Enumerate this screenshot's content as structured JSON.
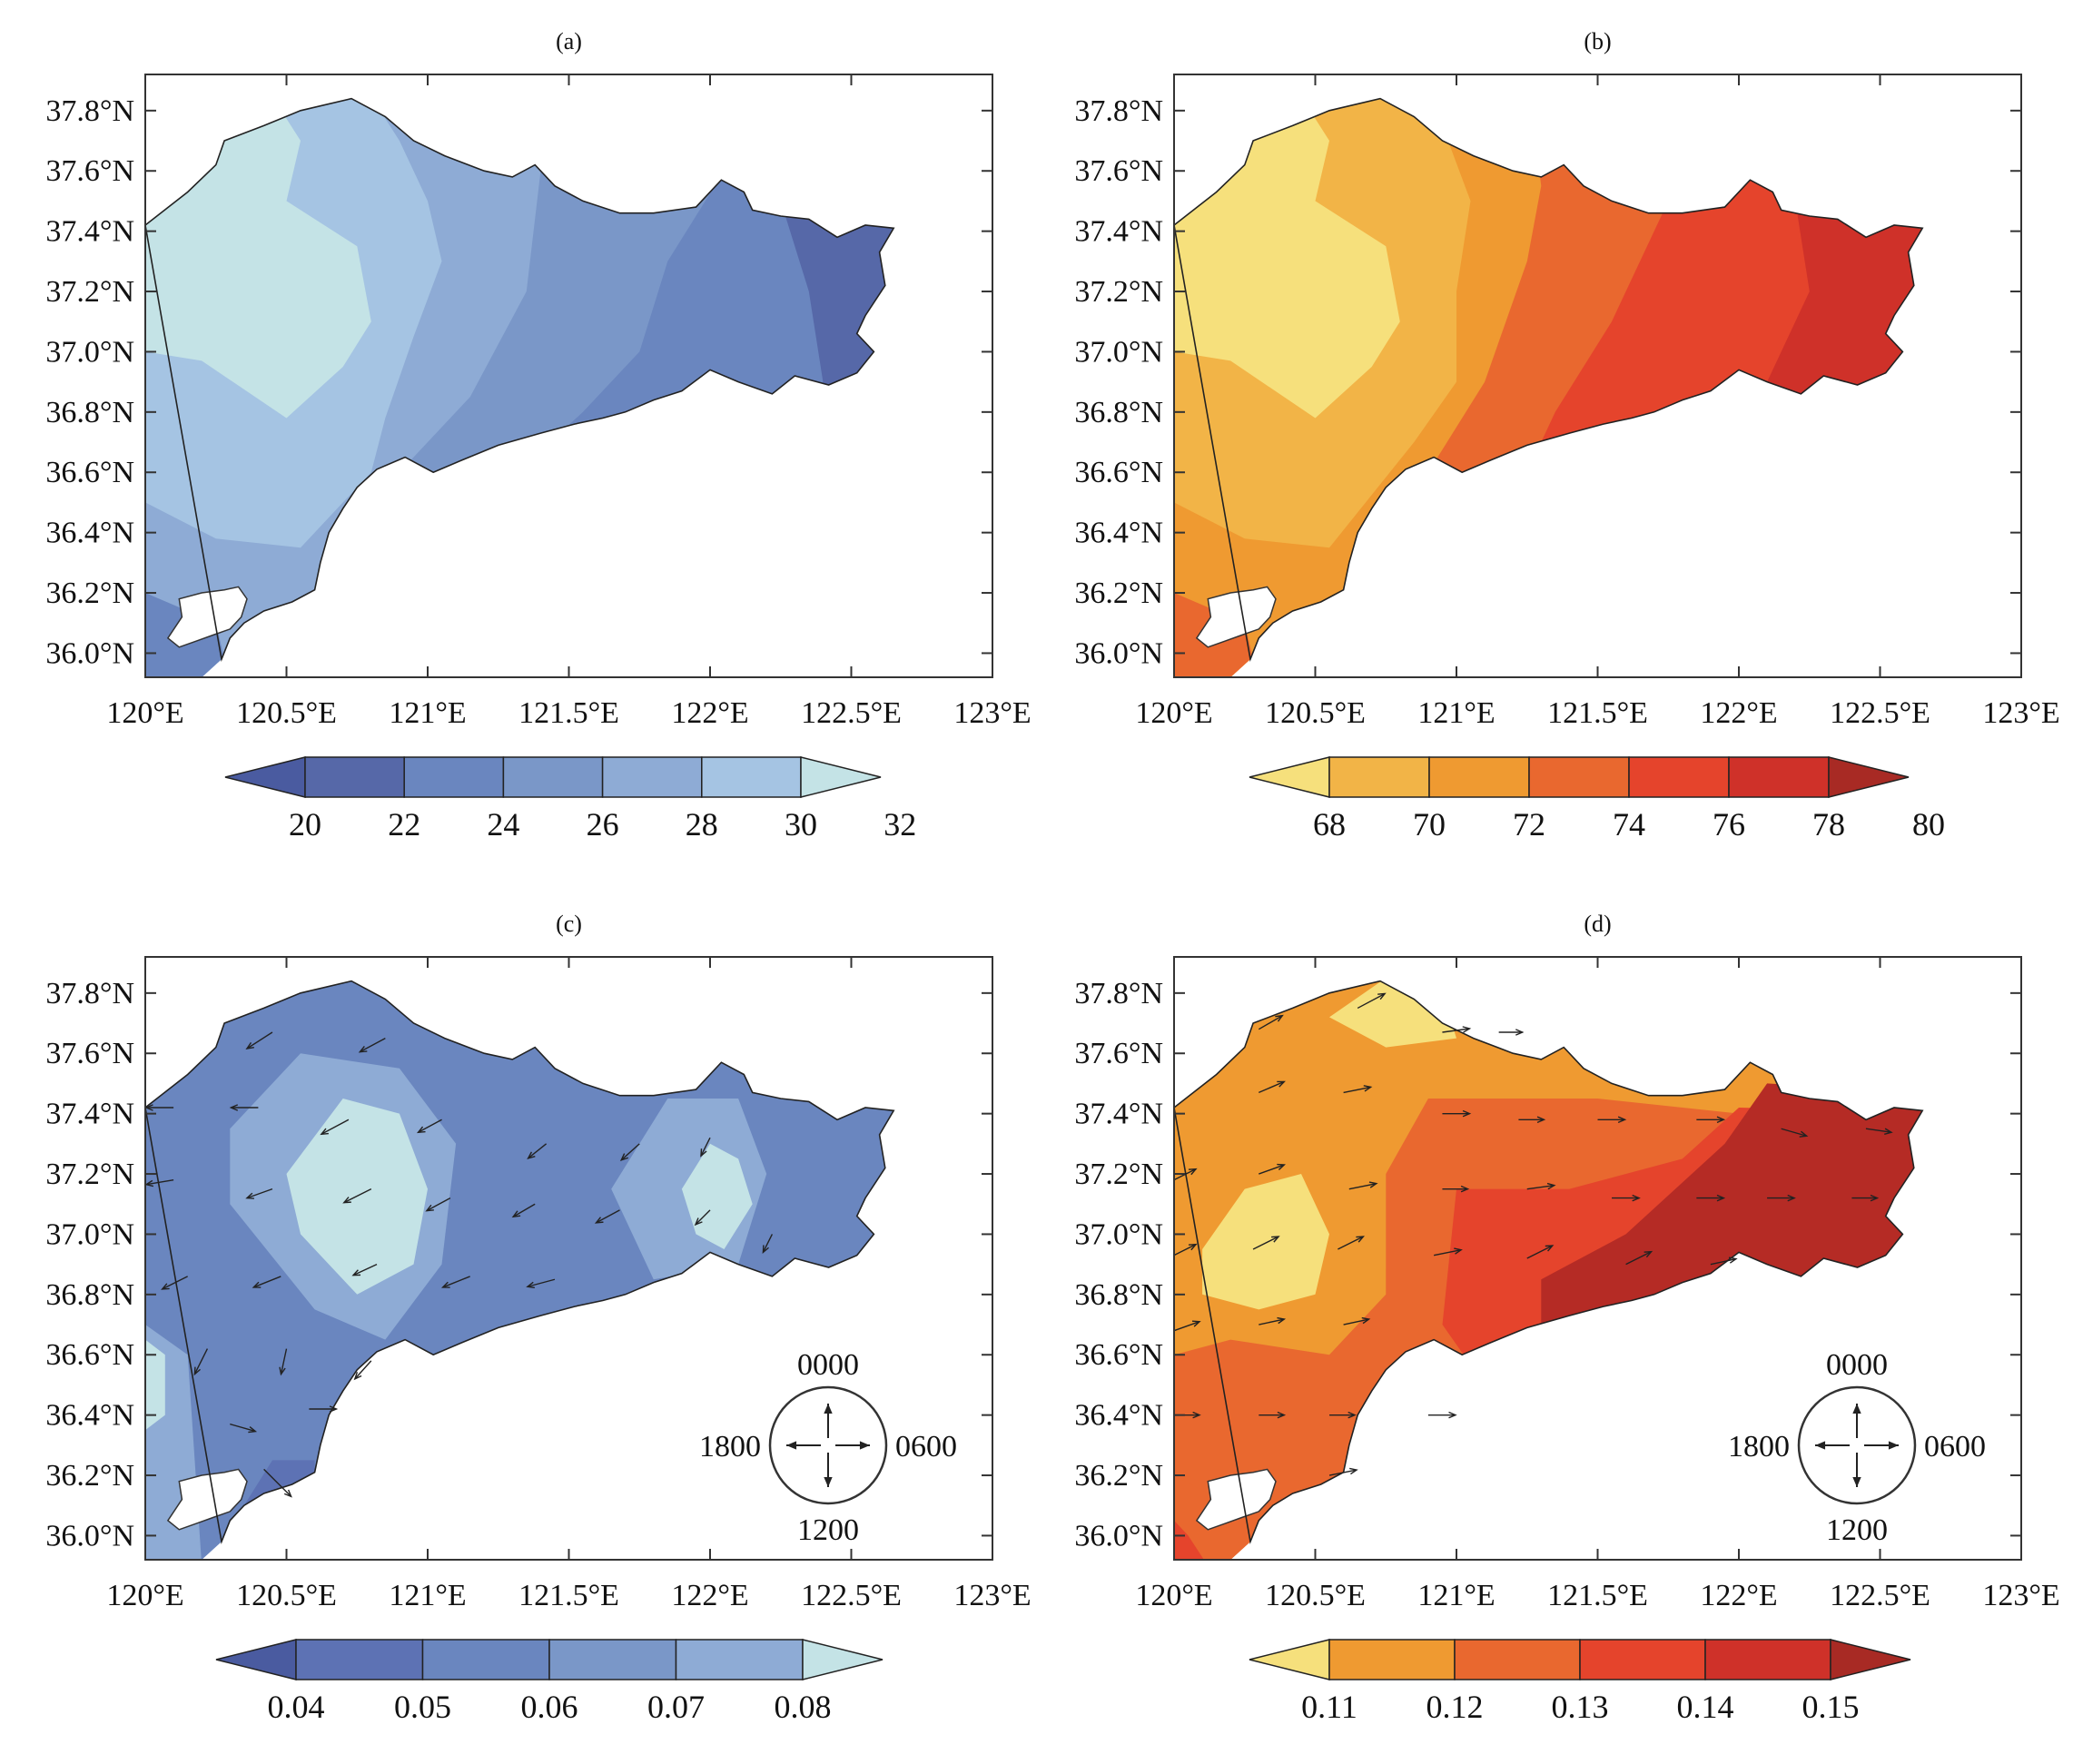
{
  "panels": [
    {
      "id": "a",
      "label": "(a)",
      "lat_ticks": [
        "37.8°N",
        "37.6°N",
        "37.4°N",
        "37.2°N",
        "37.0°N",
        "36.8°N",
        "36.6°N",
        "36.4°N",
        "36.2°N",
        "36.0°N"
      ],
      "lon_ticks": [
        "120°E",
        "120.5°E",
        "121°E",
        "121.5°E",
        "122°E",
        "122.5°E",
        "123°E"
      ],
      "colorbar": {
        "ticks": [
          "20",
          "22",
          "24",
          "26",
          "28",
          "30",
          "32"
        ],
        "colors": [
          "#4a5ba0",
          "#5668a8",
          "#6a86bf",
          "#7a97c8",
          "#8eabd5",
          "#a5c4e3",
          "#c4e3e6"
        ]
      },
      "fill_colors": [
        "#c4e3e6",
        "#a5c4e3",
        "#8eabd5",
        "#7a97c8",
        "#6a86bf",
        "#5668a8"
      ],
      "has_vectors": false
    },
    {
      "id": "b",
      "label": "(b)",
      "lat_ticks": [
        "37.8°N",
        "37.6°N",
        "37.4°N",
        "37.2°N",
        "37.0°N",
        "36.8°N",
        "36.6°N",
        "36.4°N",
        "36.2°N",
        "36.0°N"
      ],
      "lon_ticks": [
        "120°E",
        "120.5°E",
        "121°E",
        "121.5°E",
        "122°E",
        "122.5°E",
        "123°E"
      ],
      "colorbar": {
        "ticks": [
          "68",
          "70",
          "72",
          "74",
          "76",
          "78",
          "80"
        ],
        "colors": [
          "#f6e07c",
          "#f2b447",
          "#ef9a31",
          "#e9682f",
          "#e5442c",
          "#cf3129",
          "#a82a24"
        ]
      },
      "fill_colors": [
        "#f6e07c",
        "#f2b447",
        "#ef9a31",
        "#e9682f",
        "#e5442c",
        "#cf3129"
      ],
      "has_vectors": false
    },
    {
      "id": "c",
      "label": "(c)",
      "lat_ticks": [
        "37.8°N",
        "37.6°N",
        "37.4°N",
        "37.2°N",
        "37.0°N",
        "36.8°N",
        "36.6°N",
        "36.4°N",
        "36.2°N",
        "36.0°N"
      ],
      "lon_ticks": [
        "120°E",
        "120.5°E",
        "121°E",
        "121.5°E",
        "122°E",
        "122.5°E",
        "123°E"
      ],
      "colorbar": {
        "ticks": [
          "0.04",
          "0.05",
          "0.06",
          "0.07",
          "0.08"
        ],
        "colors": [
          "#4a5ba0",
          "#5d72b4",
          "#6a86bf",
          "#7a97c8",
          "#8eabd5",
          "#c4e3e6"
        ]
      },
      "fill_colors": [
        "#6a86bf",
        "#8eabd5",
        "#c4e3e6",
        "#5d72b4"
      ],
      "has_vectors": true,
      "compass": {
        "top": "0000",
        "right": "0600",
        "bottom": "1200",
        "left": "1800"
      }
    },
    {
      "id": "d",
      "label": "(d)",
      "lat_ticks": [
        "37.8°N",
        "37.6°N",
        "37.4°N",
        "37.2°N",
        "37.0°N",
        "36.8°N",
        "36.6°N",
        "36.4°N",
        "36.2°N",
        "36.0°N"
      ],
      "lon_ticks": [
        "120°E",
        "120.5°E",
        "121°E",
        "121.5°E",
        "122°E",
        "122.5°E",
        "123°E"
      ],
      "colorbar": {
        "ticks": [
          "0.11",
          "0.12",
          "0.13",
          "0.14",
          "0.15"
        ],
        "colors": [
          "#f6e07c",
          "#ef9a31",
          "#e9682f",
          "#e5442c",
          "#cf3129",
          "#a82a24"
        ]
      },
      "fill_colors": [
        "#f6e07c",
        "#ef9a31",
        "#e9682f",
        "#e5442c",
        "#b52b25"
      ],
      "has_vectors": true,
      "compass": {
        "top": "0000",
        "right": "0600",
        "bottom": "1200",
        "left": "1800"
      }
    }
  ]
}
